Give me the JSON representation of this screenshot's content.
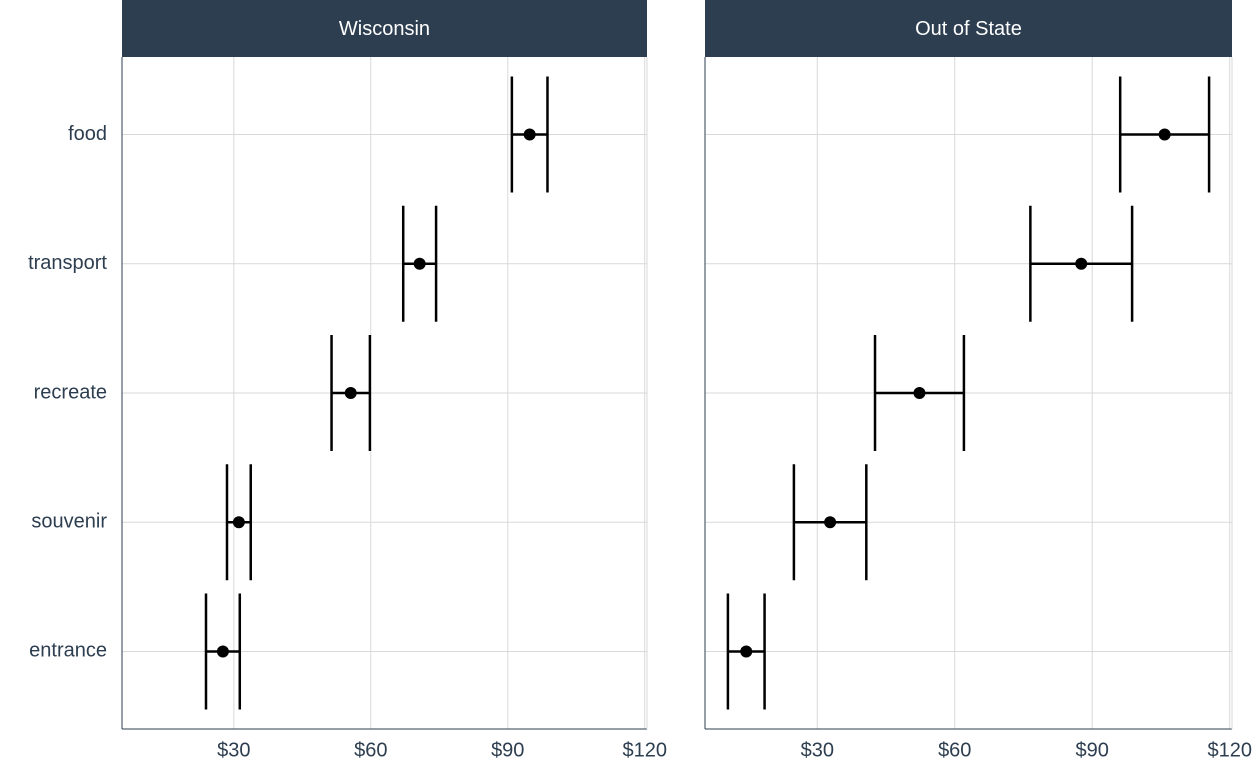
{
  "chart_data": {
    "type": "errorbar",
    "categories": [
      "food",
      "transport",
      "recreate",
      "souvenir",
      "entrance"
    ],
    "xlim": [
      5.5,
      120.5
    ],
    "xticks": [
      {
        "value": 30,
        "label": "$30"
      },
      {
        "value": 60,
        "label": "$60"
      },
      {
        "value": 90,
        "label": "$90"
      },
      {
        "value": 120,
        "label": "$120"
      }
    ],
    "grid": true,
    "color": "#000000",
    "panels": [
      {
        "title": "Wisconsin",
        "values": [
          94.8,
          70.7,
          55.6,
          31.1,
          27.6
        ],
        "errors": [
          3.9,
          3.6,
          4.2,
          2.6,
          3.7
        ]
      },
      {
        "title": "Out of State",
        "values": [
          105.8,
          87.6,
          52.3,
          32.8,
          14.5
        ],
        "errors": [
          9.7,
          11.1,
          9.7,
          7.9,
          4.0
        ]
      }
    ]
  }
}
